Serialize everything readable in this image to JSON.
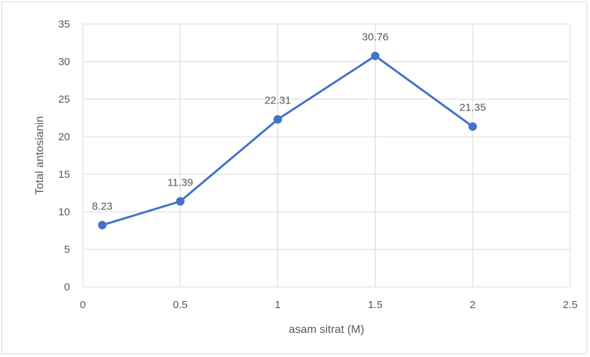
{
  "chart_data": {
    "type": "scatter",
    "title": "",
    "xlabel": "asam sitrat (M)",
    "ylabel": "Total antosianin",
    "xlim": [
      0,
      2.5
    ],
    "ylim": [
      0,
      35
    ],
    "x_ticks": [
      0,
      0.5,
      1,
      1.5,
      2,
      2.5
    ],
    "y_ticks": [
      0,
      5,
      10,
      15,
      20,
      25,
      30,
      35
    ],
    "grid": true,
    "legend": "none",
    "series": [
      {
        "x": [
          0.1,
          0.5,
          1,
          1.5,
          2
        ],
        "y": [
          8.23,
          11.39,
          22.31,
          30.76,
          21.35
        ],
        "labels": [
          "8.23",
          "11.39",
          "22.31",
          "30.76",
          "21.35"
        ],
        "mode": "lines+markers",
        "color": "#4472c4"
      }
    ]
  },
  "colors": {
    "series": "#4472c4",
    "grid": "#d9d9d9",
    "text": "#595959"
  }
}
